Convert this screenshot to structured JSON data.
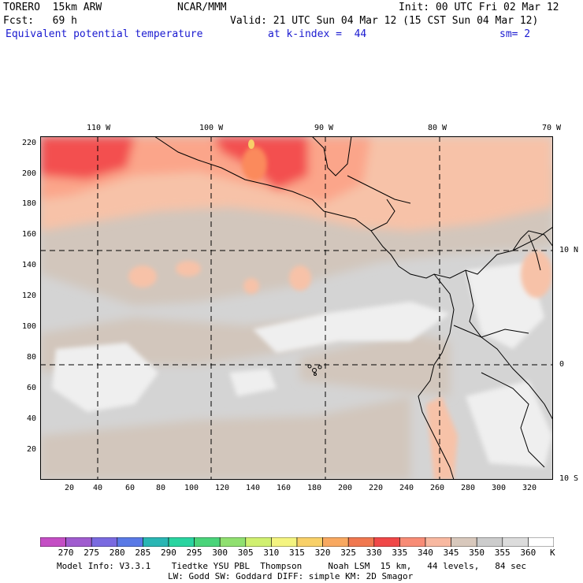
{
  "header": {
    "model": "TORERO  15km ARW",
    "center": "NCAR/MMM",
    "init": "Init: 00 UTC Fri 02 Mar 12",
    "fcst": "Fcst:   69 h",
    "valid": "Valid: 21 UTC Sun 04 Mar 12 (15 CST Sun 04 Mar 12)",
    "field": "Equivalent potential temperature",
    "level": "at k-index =  44",
    "smoothing": "sm= 2"
  },
  "map": {
    "lon_labels": [
      "110 W",
      "100 W",
      "90 W",
      "80 W",
      "70 W"
    ],
    "lat_labels": [
      "10 N",
      "0",
      "10 S"
    ],
    "x_ticks": [
      "20",
      "40",
      "60",
      "80",
      "100",
      "120",
      "140",
      "160",
      "180",
      "200",
      "220",
      "240",
      "260",
      "280",
      "300",
      "320"
    ],
    "y_ticks": [
      "220",
      "200",
      "180",
      "160",
      "140",
      "120",
      "100",
      "80",
      "60",
      "40",
      "20"
    ],
    "grid_extent": {
      "x": [
        1,
        334
      ],
      "y": [
        1,
        225
      ]
    },
    "colors": {
      "ocean_light": "#d4d4d4",
      "tan": "#d2c6bc",
      "salmon_light": "#f7c2a8",
      "salmon": "#fba58a",
      "red": "#f34f4f",
      "orange": "#fb8a5c",
      "white": "#f2f2f2",
      "land_outline": "#000000"
    }
  },
  "colorbar": {
    "labels": [
      "270",
      "275",
      "280",
      "285",
      "290",
      "295",
      "300",
      "305",
      "310",
      "315",
      "320",
      "325",
      "330",
      "335",
      "340",
      "345",
      "350",
      "355",
      "360"
    ],
    "unit": "K",
    "colors": [
      "#c44ec4",
      "#a05ccf",
      "#7a6ae0",
      "#5a7ae6",
      "#2ab6b4",
      "#2ad4a0",
      "#4ad47a",
      "#90e070",
      "#d0f070",
      "#f4f480",
      "#f8d068",
      "#f8a860",
      "#f07850",
      "#f04848",
      "#f88c76",
      "#f8b8a0",
      "#d8c8bc",
      "#cccccc",
      "#dcdcdc",
      "#ffffff"
    ]
  },
  "footer": {
    "line1": "Model Info: V3.3.1    Tiedtke YSU PBL  Thompson     Noah LSM  15 km,   44 levels,   84 sec",
    "line2": "LW: Godd SW: Goddard DIFF: simple KM: 2D Smagor"
  }
}
